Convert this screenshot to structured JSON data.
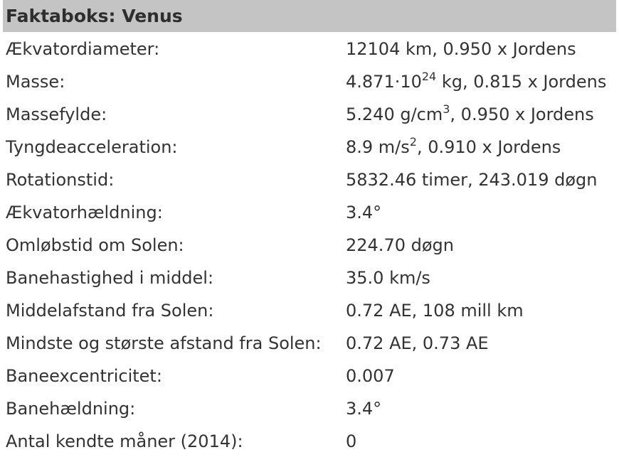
{
  "title": "Faktaboks: Venus",
  "rows": [
    {
      "label": "Ækvatordiameter:",
      "value": "12104 km, 0.950 x Jordens"
    },
    {
      "label": "Masse:",
      "value_pre": "4.871·10",
      "value_sup": "24",
      "value_post": " kg, 0.815 x Jordens"
    },
    {
      "label": "Massefylde:",
      "value_pre": "5.240 g/cm",
      "value_sup": "3",
      "value_post": ", 0.950 x Jordens"
    },
    {
      "label": "Tyngdeacceleration:",
      "value_pre": "8.9 m/s",
      "value_sup": "2",
      "value_post": ", 0.910 x Jordens"
    },
    {
      "label": "Rotationstid:",
      "value": "5832.46 timer, 243.019 døgn"
    },
    {
      "label": "Ækvatorhældning:",
      "value": "3.4°"
    },
    {
      "label": "Omløbstid om Solen:",
      "value": "224.70 døgn"
    },
    {
      "label": "Banehastighed i middel:",
      "value": "35.0 km/s"
    },
    {
      "label": "Middelafstand fra Solen:",
      "value": "0.72 AE, 108 mill km"
    },
    {
      "label": "Mindste og største afstand fra Solen:",
      "value": "0.72 AE, 0.73 AE"
    },
    {
      "label": "Baneexcentricitet:",
      "value": "0.007"
    },
    {
      "label": "Banehældning:",
      "value": "3.4°"
    },
    {
      "label": "Antal kendte måner (2014):",
      "value": "0"
    }
  ]
}
